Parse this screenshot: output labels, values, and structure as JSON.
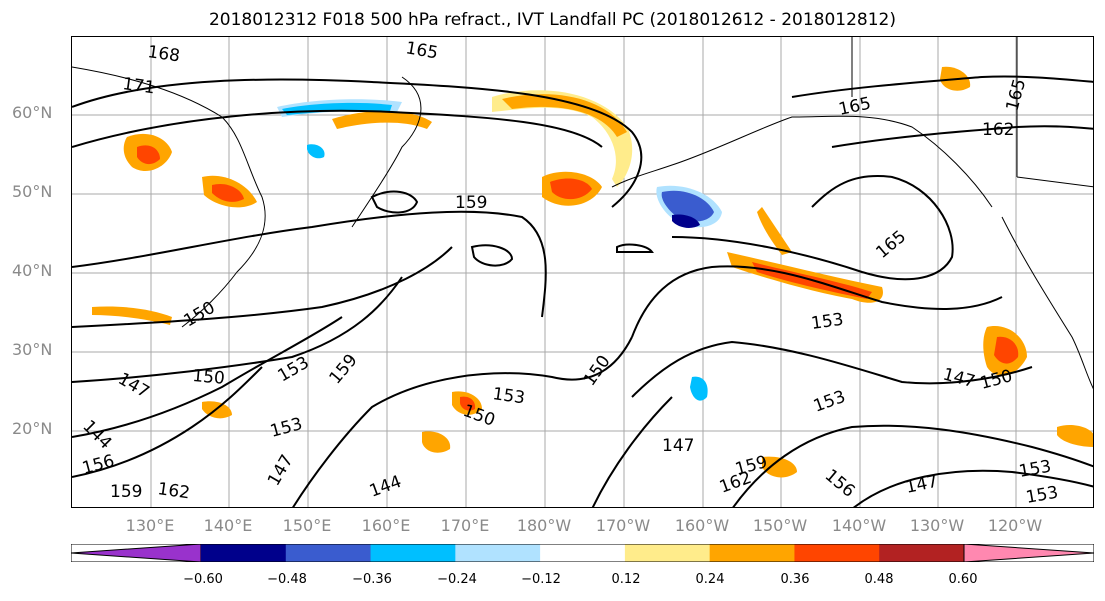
{
  "title": "2018012312 F018 500 hPa refract., IVT Landfall PC (2018012612 - 2018012812)",
  "map": {
    "lat_labels": [
      "60°N",
      "50°N",
      "40°N",
      "30°N",
      "20°N"
    ],
    "lon_labels": [
      "130°E",
      "140°E",
      "150°E",
      "160°E",
      "170°E",
      "180°W",
      "170°W",
      "160°W",
      "150°W",
      "140°W",
      "130°W",
      "120°W"
    ],
    "contour_labels": [
      "168",
      "171",
      "165",
      "165",
      "165",
      "162",
      "159",
      "165",
      "153",
      "147",
      "150",
      "153",
      "159",
      "153",
      "150",
      "153",
      "150",
      "147",
      "144",
      "153",
      "147",
      "156",
      "159",
      "162",
      "144",
      "147",
      "150",
      "162",
      "159",
      "156",
      "147",
      "153",
      "153",
      "150"
    ]
  },
  "colorbar": {
    "colors": [
      "#9932cc",
      "#00008b",
      "#3a5ccf",
      "#00bfff",
      "#b0e2ff",
      "#ffffff",
      "#ffec8b",
      "#ffa500",
      "#ff4500",
      "#b22222",
      "#ff88b0"
    ],
    "tick_labels": [
      "−0.60",
      "−0.48",
      "−0.36",
      "−0.24",
      "−0.12",
      "0.12",
      "0.24",
      "0.36",
      "0.48",
      "0.60"
    ]
  }
}
